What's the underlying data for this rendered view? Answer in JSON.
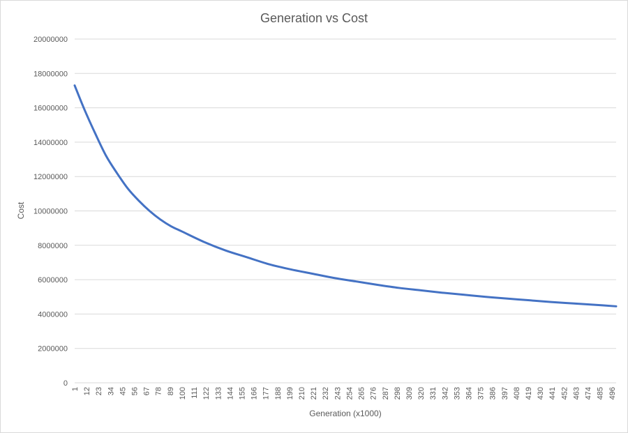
{
  "chart_data": {
    "type": "line",
    "title": "Generation vs Cost",
    "xlabel": "Generation (x1000)",
    "ylabel": "Cost",
    "ylim": [
      0,
      20000000
    ],
    "yticks": [
      "0",
      "2000000",
      "4000000",
      "6000000",
      "8000000",
      "10000000",
      "12000000",
      "14000000",
      "16000000",
      "18000000",
      "20000000"
    ],
    "x_range": [
      1,
      500
    ],
    "xtick_labels": [
      "1",
      "12",
      "23",
      "34",
      "45",
      "56",
      "67",
      "78",
      "89",
      "100",
      "111",
      "122",
      "133",
      "144",
      "155",
      "166",
      "177",
      "188",
      "199",
      "210",
      "221",
      "232",
      "243",
      "254",
      "265",
      "276",
      "287",
      "298",
      "309",
      "320",
      "331",
      "342",
      "353",
      "364",
      "375",
      "386",
      "397",
      "408",
      "419",
      "430",
      "441",
      "452",
      "463",
      "474",
      "485",
      "496"
    ],
    "grid": true,
    "series": [
      {
        "name": "Cost",
        "color": "#4472c4",
        "x": [
          1,
          10,
          20,
          30,
          40,
          50,
          60,
          70,
          80,
          90,
          100,
          120,
          140,
          160,
          180,
          200,
          220,
          240,
          260,
          280,
          300,
          320,
          340,
          360,
          380,
          400,
          420,
          440,
          460,
          480,
          500
        ],
        "values": [
          17300000,
          15900000,
          14500000,
          13200000,
          12200000,
          11300000,
          10600000,
          10000000,
          9500000,
          9100000,
          8800000,
          8200000,
          7700000,
          7300000,
          6900000,
          6600000,
          6350000,
          6100000,
          5900000,
          5700000,
          5520000,
          5380000,
          5240000,
          5120000,
          5000000,
          4900000,
          4800000,
          4700000,
          4620000,
          4540000,
          4450000
        ]
      }
    ]
  }
}
